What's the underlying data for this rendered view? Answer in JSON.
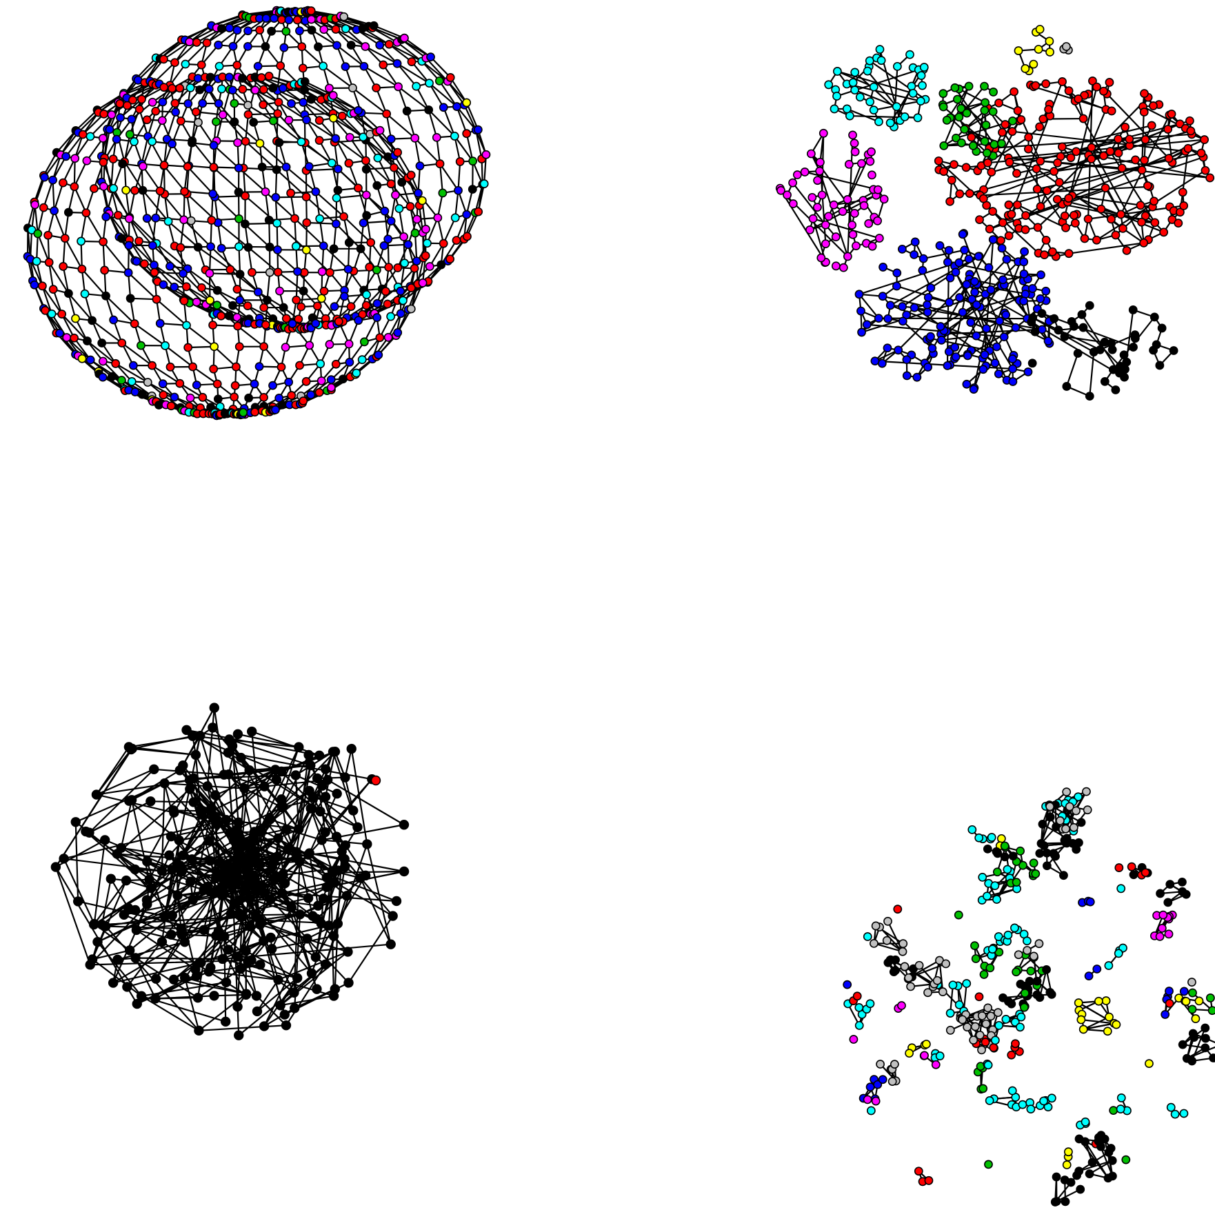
{
  "colors": {
    "red": "#ff0000",
    "blue": "#0000ff",
    "magenta": "#ff00ff",
    "cyan": "#00ffff",
    "green": "#00c000",
    "yellow": "#ffff00",
    "black": "#000000",
    "gray": "#c0c0c0",
    "edge": "#000000",
    "background": "#ffffff"
  },
  "panels": [
    {
      "key": "panel-top-left",
      "kind": "lattice",
      "description_colors": [
        "red",
        "blue",
        "magenta",
        "cyan",
        "green",
        "yellow",
        "black",
        "gray"
      ]
    },
    {
      "key": "panel-top-right",
      "kind": "clusters",
      "description_colors": [
        "red",
        "blue",
        "magenta",
        "cyan",
        "green",
        "yellow",
        "black",
        "gray"
      ]
    },
    {
      "key": "panel-bottom-left",
      "kind": "hairball",
      "description_colors": [
        "black",
        "red"
      ]
    },
    {
      "key": "panel-bottom-right",
      "kind": "fragments",
      "description_colors": [
        "red",
        "blue",
        "magenta",
        "cyan",
        "green",
        "yellow",
        "black",
        "gray"
      ]
    }
  ]
}
